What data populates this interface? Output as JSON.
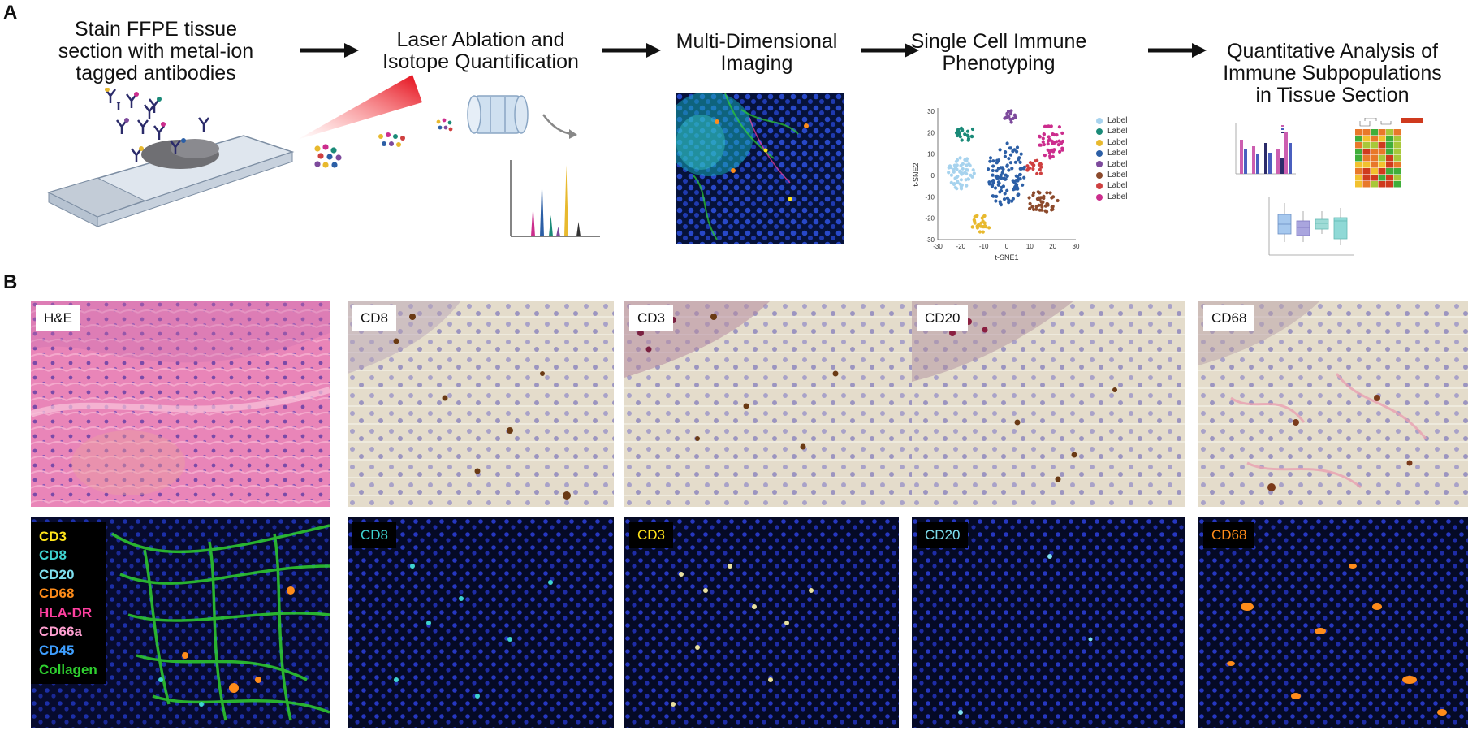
{
  "panels": {
    "a": "A",
    "b": "B"
  },
  "steps": [
    {
      "lines": [
        "Stain FFPE tissue",
        "section with metal-ion",
        "tagged antibodies"
      ]
    },
    {
      "lines": [
        "Laser Ablation and",
        "Isotope Quantification"
      ]
    },
    {
      "lines": [
        "Multi-Dimensional",
        "Imaging"
      ]
    },
    {
      "lines": [
        "Single Cell Immune",
        "Phenotyping"
      ]
    },
    {
      "lines": [
        "Quantitative Analysis of",
        "Immune Subpopulations",
        "in Tissue Section"
      ]
    }
  ],
  "tsne": {
    "xlabel": "t-SNE1",
    "ylabel": "t-SNE2",
    "xticks": [
      "-30",
      "-20",
      "-10",
      "0",
      "10",
      "20",
      "30"
    ],
    "yticks": [
      "30",
      "20",
      "10",
      "0",
      "-10",
      "-20",
      "-30"
    ],
    "legend": [
      {
        "label": "Label",
        "color": "#a7d3ee"
      },
      {
        "label": "Label",
        "color": "#1a8a78"
      },
      {
        "label": "Label",
        "color": "#e8b92e"
      },
      {
        "label": "Label",
        "color": "#2c5fa6"
      },
      {
        "label": "Label",
        "color": "#7d4a9c"
      },
      {
        "label": "Label",
        "color": "#8c4a2c"
      },
      {
        "label": "Label",
        "color": "#cf4040"
      },
      {
        "label": "Label",
        "color": "#cc2d8d"
      }
    ]
  },
  "ihc_labels": [
    "H&E",
    "CD8",
    "CD3",
    "CD20",
    "CD68"
  ],
  "if_labels": {
    "cd8": {
      "text": "CD8",
      "color": "#3fd3d0"
    },
    "cd3": {
      "text": "CD3",
      "color": "#ffe41a"
    },
    "cd20": {
      "text": "CD20",
      "color": "#7fe0f0"
    },
    "cd68": {
      "text": "CD68",
      "color": "#ff8c1a"
    }
  },
  "composite_legend": [
    {
      "text": "CD3",
      "color": "#ffe41a"
    },
    {
      "text": "CD8",
      "color": "#3fd3d0"
    },
    {
      "text": "CD20",
      "color": "#7fe0f0"
    },
    {
      "text": "CD68",
      "color": "#ff8c1a"
    },
    {
      "text": "HLA-DR",
      "color": "#ff3fa0"
    },
    {
      "text": "CD66a",
      "color": "#ff9fd0"
    },
    {
      "text": "CD45",
      "color": "#3f9fff"
    },
    {
      "text": "Collagen",
      "color": "#2fd02f"
    }
  ]
}
